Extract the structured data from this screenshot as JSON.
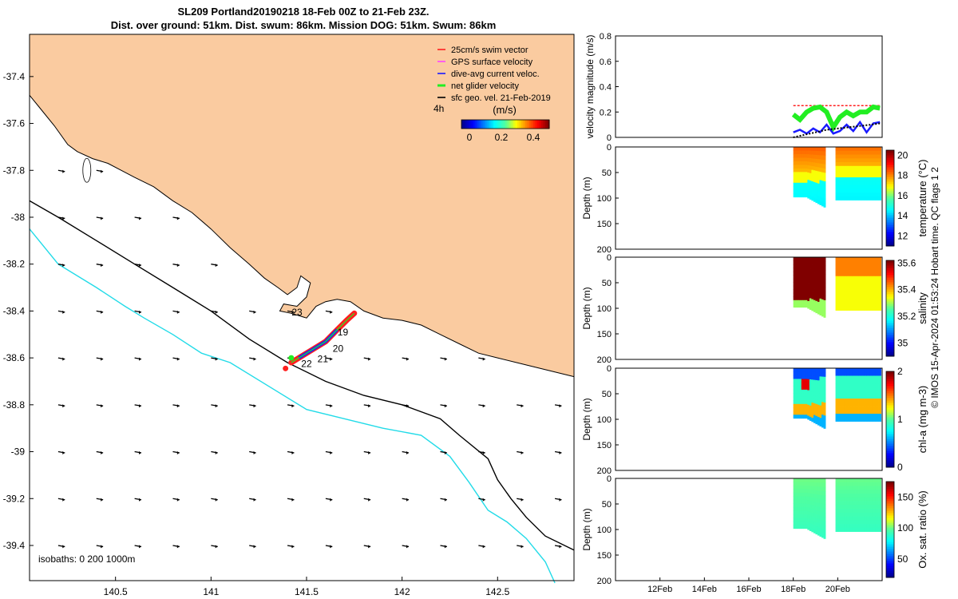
{
  "header": {
    "title_line1": "SL209 Portland20190218 18-Feb 00Z to 21-Feb 23Z.",
    "title_line2": "Dist. over ground: 51km. Dist. swum: 86km. Mission DOG: 51km. Swum: 86km"
  },
  "credit": "© IMOS 15-Apr-2024 01:53:24 Hobart time. QC flags 1  2",
  "colors": {
    "land": "#facba0",
    "shelf_isobath": "#000000",
    "deep_isobath": "#22dbe8",
    "swim_vector": "#ff2020",
    "gps_velocity": "#ff44ff",
    "dive_current": "#1a1aff",
    "net_velocity": "#22ee22",
    "geo_velocity": "#000000"
  },
  "chart_data": [
    {
      "id": "map",
      "type": "map",
      "xlim": [
        140.05,
        142.9
      ],
      "ylim": [
        -39.55,
        -37.22
      ],
      "x_ticks": [
        140.5,
        141,
        141.5,
        142,
        142.5
      ],
      "y_ticks": [
        -37.4,
        -37.6,
        -37.8,
        -38,
        -38.2,
        -38.4,
        -38.6,
        -38.8,
        -39,
        -39.2,
        -39.4
      ],
      "legend": {
        "placement": "top-right",
        "entries": [
          "25cm/s swim vector",
          "GPS surface velocity",
          "dive-avg current veloc.",
          "net glider velocity",
          "sfc geo. vel. 21-Feb-2019"
        ],
        "time_label": "4h",
        "colorbar_unit": "(m/s)",
        "colorbar_ticks": [
          0,
          0.2,
          0.4
        ],
        "colorbar_range": [
          -0.05,
          0.5
        ]
      },
      "isobath_note": "isobaths: 0   200   1000m",
      "track_day_labels": [
        {
          "text": "19",
          "lon": 141.69,
          "lat": -38.49
        },
        {
          "text": "20",
          "lon": 141.665,
          "lat": -38.56
        },
        {
          "text": "21",
          "lon": 141.585,
          "lat": -38.605
        },
        {
          "text": "22",
          "lon": 141.5,
          "lat": -38.625
        },
        {
          "text": "23",
          "lon": 141.45,
          "lat": -38.405
        }
      ],
      "coastline": [
        [
          140.05,
          -37.48
        ],
        [
          140.1,
          -37.53
        ],
        [
          140.18,
          -37.61
        ],
        [
          140.25,
          -37.69
        ],
        [
          140.3,
          -37.72
        ],
        [
          140.38,
          -37.75
        ],
        [
          140.46,
          -37.77
        ],
        [
          140.53,
          -37.8
        ],
        [
          140.6,
          -37.83
        ],
        [
          140.7,
          -37.87
        ],
        [
          140.8,
          -37.93
        ],
        [
          140.9,
          -37.98
        ],
        [
          141.0,
          -38.05
        ],
        [
          141.1,
          -38.13
        ],
        [
          141.2,
          -38.2
        ],
        [
          141.28,
          -38.26
        ],
        [
          141.35,
          -38.3
        ],
        [
          141.4,
          -38.33
        ],
        [
          141.45,
          -38.3
        ],
        [
          141.47,
          -38.25
        ],
        [
          141.52,
          -38.28
        ],
        [
          141.5,
          -38.34
        ],
        [
          141.45,
          -38.38
        ],
        [
          141.38,
          -38.37
        ],
        [
          141.36,
          -38.4
        ],
        [
          141.42,
          -38.41
        ],
        [
          141.5,
          -38.43
        ],
        [
          141.55,
          -38.38
        ],
        [
          141.6,
          -38.36
        ],
        [
          141.66,
          -38.35
        ],
        [
          141.73,
          -38.36
        ],
        [
          141.8,
          -38.4
        ],
        [
          141.9,
          -38.43
        ],
        [
          142.0,
          -38.44
        ],
        [
          142.1,
          -38.46
        ],
        [
          142.2,
          -38.5
        ],
        [
          142.3,
          -38.54
        ],
        [
          142.4,
          -38.58
        ],
        [
          142.5,
          -38.6
        ],
        [
          142.6,
          -38.62
        ],
        [
          142.7,
          -38.64
        ],
        [
          142.9,
          -38.68
        ]
      ],
      "isobath_200": [
        [
          140.05,
          -37.93
        ],
        [
          140.2,
          -38.0
        ],
        [
          140.4,
          -38.1
        ],
        [
          140.6,
          -38.2
        ],
        [
          140.8,
          -38.3
        ],
        [
          141.0,
          -38.4
        ],
        [
          141.2,
          -38.52
        ],
        [
          141.4,
          -38.62
        ],
        [
          141.6,
          -38.7
        ],
        [
          141.8,
          -38.76
        ],
        [
          142.0,
          -38.8
        ],
        [
          142.2,
          -38.86
        ],
        [
          142.3,
          -38.93
        ],
        [
          142.45,
          -39.03
        ],
        [
          142.5,
          -39.12
        ],
        [
          142.57,
          -39.2
        ],
        [
          142.65,
          -39.28
        ],
        [
          142.75,
          -39.36
        ],
        [
          142.9,
          -39.42
        ]
      ],
      "isobath_1000": [
        [
          140.05,
          -38.05
        ],
        [
          140.2,
          -38.2
        ],
        [
          140.4,
          -38.3
        ],
        [
          140.55,
          -38.38
        ],
        [
          140.65,
          -38.43
        ],
        [
          140.8,
          -38.5
        ],
        [
          140.95,
          -38.58
        ],
        [
          141.1,
          -38.62
        ],
        [
          141.3,
          -38.72
        ],
        [
          141.5,
          -38.82
        ],
        [
          141.7,
          -38.86
        ],
        [
          141.9,
          -38.9
        ],
        [
          142.1,
          -38.93
        ],
        [
          142.25,
          -39.02
        ],
        [
          142.35,
          -39.13
        ],
        [
          142.45,
          -39.25
        ],
        [
          142.55,
          -39.3
        ],
        [
          142.65,
          -39.37
        ],
        [
          142.75,
          -39.47
        ],
        [
          142.8,
          -39.56
        ]
      ],
      "glider_track": [
        [
          141.42,
          -38.62
        ],
        [
          141.46,
          -38.6
        ],
        [
          141.52,
          -38.57
        ],
        [
          141.6,
          -38.53
        ],
        [
          141.66,
          -38.48
        ],
        [
          141.71,
          -38.44
        ],
        [
          141.75,
          -38.41
        ]
      ],
      "vector_field": {
        "lons": [
          140.2,
          140.4,
          140.6,
          140.8,
          141.0,
          141.2,
          141.4,
          141.6,
          141.8,
          142.0,
          142.2,
          142.4,
          142.6,
          142.8
        ],
        "lats": [
          -37.8,
          -38.0,
          -38.2,
          -38.4,
          -38.6,
          -38.8,
          -39.0,
          -39.2,
          -39.4
        ],
        "u": 0.035,
        "v": -0.005
      }
    },
    {
      "id": "velocity",
      "type": "line",
      "ylabel": "velocity magnitude (m/s)",
      "ylim": [
        0,
        0.8
      ],
      "y_ticks": [
        0,
        0.2,
        0.4,
        0.6,
        0.8
      ],
      "x_days_range": [
        10,
        22
      ],
      "series": [
        {
          "name": "25cm/s swim vector",
          "x": [
            18.0,
            18.3,
            18.6,
            18.9,
            19.2,
            19.5,
            19.8,
            20.1,
            20.4,
            20.7,
            21.0,
            21.3,
            21.6,
            21.9
          ],
          "values": [
            0.25,
            0.25,
            0.25,
            0.25,
            0.25,
            0.25,
            0.25,
            0.25,
            0.25,
            0.25,
            0.25,
            0.25,
            0.25,
            0.25
          ]
        },
        {
          "name": "net glider velocity",
          "x": [
            18.0,
            18.3,
            18.6,
            18.9,
            19.2,
            19.5,
            19.8,
            20.1,
            20.4,
            20.7,
            21.0,
            21.3,
            21.6,
            21.9
          ],
          "values": [
            0.18,
            0.14,
            0.2,
            0.23,
            0.24,
            0.2,
            0.08,
            0.16,
            0.2,
            0.17,
            0.2,
            0.2,
            0.24,
            0.23
          ]
        },
        {
          "name": "dive-avg current veloc.",
          "x": [
            18.0,
            18.3,
            18.6,
            18.9,
            19.2,
            19.5,
            19.8,
            20.1,
            20.4,
            20.7,
            21.0,
            21.3,
            21.6,
            21.9
          ],
          "values": [
            0.04,
            0.06,
            0.03,
            0.07,
            0.04,
            0.1,
            0.03,
            0.05,
            0.1,
            0.05,
            0.12,
            0.04,
            0.11,
            0.12
          ]
        },
        {
          "name": "sfc geo. vel.",
          "x": [
            18.0,
            18.5,
            19.0,
            19.5,
            20.0,
            20.5,
            21.0,
            21.5,
            21.9
          ],
          "values": [
            0.0,
            0.02,
            0.04,
            0.06,
            0.07,
            0.08,
            0.09,
            0.1,
            0.11
          ]
        }
      ]
    },
    {
      "id": "temperature",
      "type": "heatmap",
      "ylabel": "Depth (m)",
      "colorbar_label": "temperature (°C)",
      "ylim": [
        200,
        0
      ],
      "y_ticks": [
        0,
        50,
        100,
        150,
        200
      ],
      "x_days_range": [
        10,
        22
      ],
      "colorbar_ticks": [
        12,
        14,
        16,
        18,
        20
      ],
      "colorbar_range": [
        11,
        20.5
      ]
    },
    {
      "id": "salinity",
      "type": "heatmap",
      "ylabel": "Depth (m)",
      "colorbar_label": "salinity",
      "ylim": [
        200,
        0
      ],
      "y_ticks": [
        0,
        50,
        100,
        150,
        200
      ],
      "x_days_range": [
        10,
        22
      ],
      "colorbar_ticks": [
        35,
        35.2,
        35.4,
        35.6
      ],
      "colorbar_range": [
        34.9,
        35.62
      ]
    },
    {
      "id": "chla",
      "type": "heatmap",
      "ylabel": "Depth (m)",
      "colorbar_label": "chl-a (mg m-3)",
      "ylim": [
        200,
        0
      ],
      "y_ticks": [
        0,
        50,
        100,
        150,
        200
      ],
      "x_days_range": [
        10,
        22
      ],
      "colorbar_ticks": [
        0,
        1,
        2
      ],
      "colorbar_range": [
        0,
        2
      ]
    },
    {
      "id": "oxygen",
      "type": "heatmap",
      "ylabel": "Depth (m)",
      "colorbar_label": "Ox. sat. ratio (%)",
      "ylim": [
        200,
        0
      ],
      "y_ticks": [
        0,
        50,
        100,
        150,
        200
      ],
      "x_days_range": [
        10,
        22
      ],
      "x_ticks": [
        12,
        14,
        16,
        18,
        20
      ],
      "x_tick_labels": [
        "12Feb",
        "14Feb",
        "16Feb",
        "18Feb",
        "20Feb"
      ],
      "colorbar_ticks": [
        50,
        100,
        150
      ],
      "colorbar_range": [
        20,
        175
      ]
    }
  ]
}
